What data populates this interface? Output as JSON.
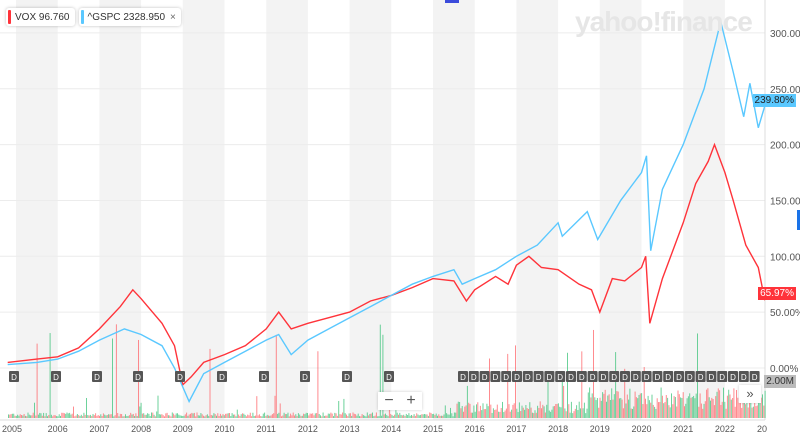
{
  "legend": {
    "vox": {
      "symbol": "VOX",
      "value": "96.760",
      "color": "#ff333a"
    },
    "gspc": {
      "symbol": "^GSPC",
      "value": "2328.950",
      "color": "#5ac8ff"
    },
    "close_icon": "×"
  },
  "watermark": "yahoo!finance",
  "tags": {
    "gspc": "239.80%",
    "vox": "65.97%"
  },
  "volume_label": "2.00M",
  "zoom": {
    "minus": "−",
    "plus": "+"
  },
  "more_icon": "»",
  "dividend_label": "D",
  "chart_data": {
    "type": "line",
    "x_ticks": [
      "2005",
      "2006",
      "2007",
      "2008",
      "2009",
      "2010",
      "2011",
      "2012",
      "2013",
      "2014",
      "2015",
      "2016",
      "2017",
      "2018",
      "2019",
      "2020",
      "2021",
      "2022",
      "20"
    ],
    "y_ticks": [
      "0.00%",
      "50.00%",
      "100.00%",
      "150.00%",
      "200.00%",
      "250.00%",
      "300.00%"
    ],
    "ylim": [
      -40,
      320
    ],
    "series": [
      {
        "name": "VOX",
        "color": "#ff333a",
        "points": [
          [
            2004.8,
            5
          ],
          [
            2005.5,
            8
          ],
          [
            2006,
            10
          ],
          [
            2006.5,
            18
          ],
          [
            2007,
            35
          ],
          [
            2007.5,
            55
          ],
          [
            2007.8,
            70
          ],
          [
            2008,
            62
          ],
          [
            2008.5,
            40
          ],
          [
            2008.8,
            20
          ],
          [
            2009,
            -15
          ],
          [
            2009.2,
            -8
          ],
          [
            2009.5,
            5
          ],
          [
            2010,
            12
          ],
          [
            2010.5,
            20
          ],
          [
            2011,
            35
          ],
          [
            2011.3,
            50
          ],
          [
            2011.6,
            35
          ],
          [
            2012,
            40
          ],
          [
            2012.5,
            45
          ],
          [
            2013,
            50
          ],
          [
            2013.5,
            60
          ],
          [
            2014,
            65
          ],
          [
            2014.5,
            72
          ],
          [
            2015,
            80
          ],
          [
            2015.5,
            78
          ],
          [
            2015.8,
            60
          ],
          [
            2016,
            70
          ],
          [
            2016.5,
            82
          ],
          [
            2016.8,
            75
          ],
          [
            2017,
            92
          ],
          [
            2017.3,
            100
          ],
          [
            2017.6,
            90
          ],
          [
            2018,
            88
          ],
          [
            2018.5,
            75
          ],
          [
            2018.8,
            70
          ],
          [
            2019,
            50
          ],
          [
            2019.3,
            80
          ],
          [
            2019.6,
            78
          ],
          [
            2020,
            90
          ],
          [
            2020.1,
            100
          ],
          [
            2020.2,
            40
          ],
          [
            2020.5,
            80
          ],
          [
            2021,
            130
          ],
          [
            2021.3,
            165
          ],
          [
            2021.6,
            185
          ],
          [
            2021.75,
            200
          ],
          [
            2022,
            175
          ],
          [
            2022.2,
            150
          ],
          [
            2022.5,
            110
          ],
          [
            2022.8,
            90
          ],
          [
            2022.95,
            62
          ],
          [
            2023,
            66
          ]
        ]
      },
      {
        "name": "^GSPC",
        "color": "#5ac8ff",
        "points": [
          [
            2004.8,
            3
          ],
          [
            2005.5,
            5
          ],
          [
            2006,
            8
          ],
          [
            2006.5,
            15
          ],
          [
            2007,
            25
          ],
          [
            2007.6,
            35
          ],
          [
            2008,
            30
          ],
          [
            2008.5,
            20
          ],
          [
            2008.8,
            0
          ],
          [
            2009.15,
            -30
          ],
          [
            2009.5,
            -5
          ],
          [
            2010,
            5
          ],
          [
            2010.5,
            15
          ],
          [
            2011,
            25
          ],
          [
            2011.3,
            30
          ],
          [
            2011.6,
            12
          ],
          [
            2012,
            25
          ],
          [
            2012.5,
            35
          ],
          [
            2013,
            45
          ],
          [
            2013.5,
            55
          ],
          [
            2014,
            65
          ],
          [
            2014.5,
            75
          ],
          [
            2015,
            82
          ],
          [
            2015.5,
            88
          ],
          [
            2015.7,
            75
          ],
          [
            2016,
            80
          ],
          [
            2016.5,
            88
          ],
          [
            2017,
            100
          ],
          [
            2017.5,
            110
          ],
          [
            2018,
            130
          ],
          [
            2018.1,
            118
          ],
          [
            2018.7,
            140
          ],
          [
            2018.95,
            115
          ],
          [
            2019.5,
            150
          ],
          [
            2020,
            175
          ],
          [
            2020.12,
            190
          ],
          [
            2020.22,
            105
          ],
          [
            2020.5,
            160
          ],
          [
            2021,
            200
          ],
          [
            2021.5,
            250
          ],
          [
            2021.9,
            310
          ],
          [
            2022,
            295
          ],
          [
            2022.2,
            265
          ],
          [
            2022.45,
            225
          ],
          [
            2022.6,
            255
          ],
          [
            2022.8,
            215
          ],
          [
            2023,
            240
          ]
        ]
      }
    ]
  }
}
